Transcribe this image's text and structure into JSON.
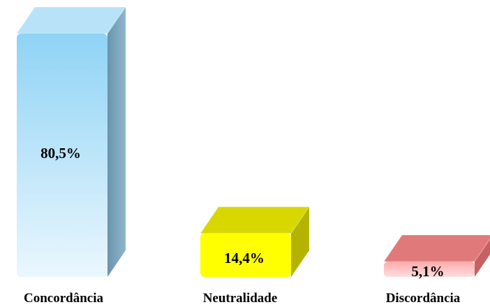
{
  "chart_data": {
    "type": "bar",
    "categories": [
      "Concordância",
      "Neutralidade",
      "Discordância"
    ],
    "values": [
      80.5,
      14.4,
      5.1
    ],
    "value_labels": [
      "80,5%",
      "14,4%",
      "5,1%"
    ],
    "unit": "%",
    "ylim": [
      0,
      100
    ],
    "grid": false,
    "legend": "none",
    "style": "3d-bars",
    "colors": {
      "bar_1_front_top": "#8fd3f5",
      "bar_1_front_bottom": "#eaf7fe",
      "bar_1_side": "#6a94ad",
      "bar_1_top": "#b8e2f7",
      "bar_2_front": "#ffff00",
      "bar_2_side": "#b4b400",
      "bar_2_top": "#d8d800",
      "bar_3_front_top": "#ffaaaa",
      "bar_3_front_bottom": "#ffdede",
      "bar_3_side": "#c76060",
      "bar_3_top": "#e07a7a"
    }
  }
}
